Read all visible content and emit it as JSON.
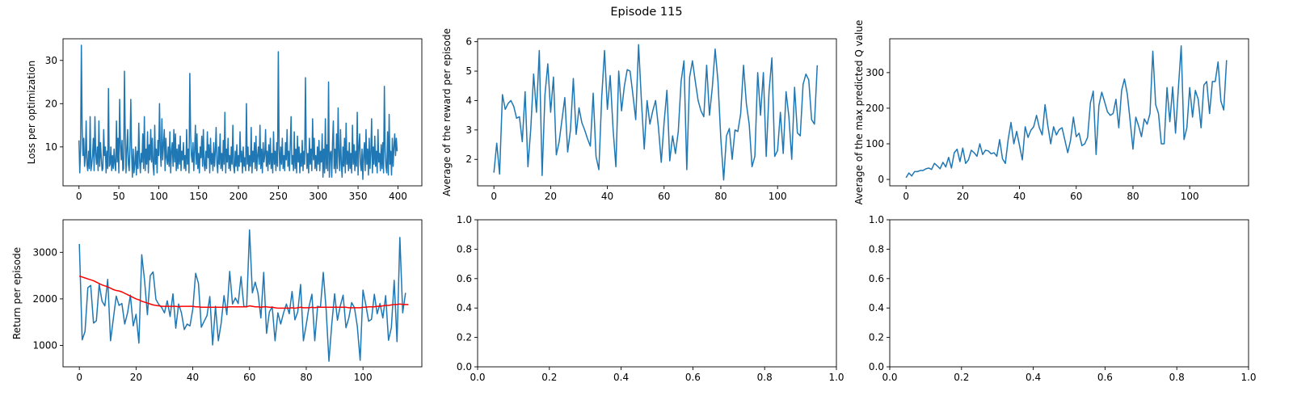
{
  "figure": {
    "suptitle": "Episode 115",
    "series_color": "#1f77b4",
    "trend_color": "#ff0000"
  },
  "chart_data": [
    {
      "id": "loss",
      "type": "line",
      "ylabel": "Loss per optimization",
      "xlim": [
        -20,
        430
      ],
      "ylim": [
        1.0,
        35.0
      ],
      "xticks": [
        0,
        50,
        100,
        150,
        200,
        250,
        300,
        350,
        400
      ],
      "yticks": [
        10,
        20,
        30
      ],
      "series": [
        {
          "values": [
            11.5,
            4.0,
            9.5,
            33.5,
            14.0,
            8.0,
            12.0,
            5.5,
            7.5,
            16.0,
            6.0,
            4.5,
            9.0,
            5.0,
            17.0,
            4.5,
            6.0,
            8.0,
            12.0,
            4.5,
            17.0,
            8.5,
            6.0,
            10.0,
            4.5,
            16.0,
            5.5,
            11.0,
            7.5,
            4.5,
            5.0,
            14.0,
            8.0,
            10.0,
            4.0,
            9.0,
            5.0,
            23.5,
            5.5,
            6.0,
            10.0,
            4.5,
            8.0,
            5.0,
            9.5,
            6.0,
            4.5,
            16.0,
            6.5,
            12.0,
            4.0,
            21.0,
            10.5,
            7.0,
            11.5,
            4.5,
            5.0,
            27.5,
            13.0,
            4.0,
            9.5,
            14.0,
            6.0,
            4.5,
            10.0,
            21.0,
            8.5,
            3.0,
            9.5,
            4.0,
            6.0,
            10.0,
            3.5,
            9.0,
            5.0,
            15.5,
            7.0,
            4.0,
            8.5,
            6.5,
            13.0,
            5.0,
            17.0,
            4.5,
            9.5,
            6.0,
            13.5,
            4.0,
            10.5,
            7.0,
            14.0,
            6.5,
            12.0,
            5.5,
            3.5,
            15.0,
            6.0,
            9.5,
            4.0,
            11.5,
            8.0,
            20.0,
            9.0,
            5.5,
            16.5,
            7.0,
            10.5,
            14.0,
            4.5,
            12.0,
            7.5,
            6.0,
            10.0,
            5.5,
            13.5,
            4.0,
            9.0,
            11.0,
            5.5,
            14.0,
            6.5,
            13.0,
            4.5,
            9.5,
            5.0,
            10.5,
            6.0,
            12.5,
            4.5,
            9.0,
            7.0,
            11.0,
            5.0,
            8.0,
            4.5,
            14.0,
            6.0,
            9.5,
            4.0,
            27.0,
            13.0,
            8.0,
            6.5,
            11.0,
            4.5,
            9.0,
            15.0,
            6.0,
            13.0,
            5.0,
            8.5,
            4.0,
            10.0,
            7.5,
            12.5,
            5.5,
            14.0,
            6.0,
            4.5,
            9.0,
            5.0,
            13.5,
            7.5,
            10.5,
            4.0,
            12.0,
            6.0,
            8.5,
            4.5,
            11.0,
            5.5,
            9.0,
            14.5,
            6.0,
            4.0,
            10.0,
            6.0,
            13.0,
            5.0,
            8.5,
            4.5,
            11.5,
            6.0,
            18.0,
            4.0,
            9.5,
            6.5,
            12.0,
            5.0,
            8.0,
            4.5,
            10.0,
            6.0,
            15.0,
            5.5,
            4.0,
            9.0,
            5.5,
            10.5,
            4.5,
            8.0,
            5.5,
            13.5,
            6.5,
            9.0,
            4.0,
            10.0,
            5.5,
            7.5,
            4.5,
            20.0,
            6.0,
            10.0,
            4.5,
            8.0,
            5.5,
            14.5,
            4.0,
            9.0,
            6.5,
            11.0,
            5.0,
            12.5,
            4.5,
            8.0,
            10.0,
            6.0,
            15.0,
            5.0,
            9.5,
            4.0,
            11.0,
            6.5,
            8.0,
            14.0,
            5.5,
            9.0,
            4.5,
            10.5,
            6.0,
            12.0,
            5.0,
            8.5,
            4.0,
            13.5,
            6.0,
            9.0,
            4.5,
            11.0,
            5.5,
            32.0,
            9.5,
            4.5,
            10.0,
            6.0,
            12.0,
            5.0,
            8.0,
            4.5,
            11.0,
            7.0,
            14.0,
            5.5,
            9.0,
            4.5,
            10.5,
            17.0,
            6.0,
            8.0,
            4.5,
            13.5,
            5.0,
            9.5,
            4.0,
            12.5,
            6.5,
            10.0,
            4.0,
            8.5,
            5.5,
            11.5,
            4.5,
            9.0,
            6.0,
            26.0,
            10.0,
            5.0,
            8.5,
            4.0,
            12.0,
            6.0,
            9.5,
            4.5,
            16.5,
            7.0,
            12.0,
            5.0,
            8.0,
            4.5,
            10.0,
            6.0,
            11.5,
            4.5,
            9.0,
            6.5,
            13.0,
            3.0,
            9.5,
            4.0,
            16.5,
            5.0,
            10.5,
            4.5,
            25.0,
            3.0,
            8.5,
            9.0,
            3.0,
            11.0,
            16.0,
            5.0,
            9.5,
            4.0,
            13.0,
            5.0,
            19.0,
            8.0,
            4.5,
            14.0,
            6.0,
            3.0,
            10.0,
            5.5,
            12.0,
            4.0,
            15.5,
            6.0,
            9.0,
            4.5,
            11.0,
            5.0,
            8.5,
            4.0,
            15.0,
            6.0,
            10.5,
            4.5,
            9.0,
            5.5,
            18.0,
            3.5,
            10.0,
            13.0,
            6.0,
            4.5,
            9.5,
            2.5,
            8.0,
            11.0,
            4.5,
            14.0,
            6.0,
            9.5,
            3.5,
            12.0,
            5.0,
            8.5,
            16.5,
            4.0,
            10.0,
            6.0,
            12.5,
            5.5,
            9.0,
            4.0,
            14.0,
            6.5,
            8.5,
            4.5,
            10.5,
            5.0,
            11.0,
            4.0,
            24.0,
            9.0,
            5.5,
            4.0,
            13.5,
            3.5,
            17.5,
            6.0,
            9.0,
            3.5,
            12.0,
            5.5,
            10.0,
            13.0,
            8.0,
            12.0,
            9.0
          ]
        }
      ]
    },
    {
      "id": "reward",
      "type": "line",
      "ylabel": "Average of the reward per episode",
      "xlim": [
        -5.75,
        120.75
      ],
      "ylim": [
        1.1,
        6.1
      ],
      "xticks": [
        0,
        20,
        40,
        60,
        80,
        100
      ],
      "yticks": [
        2,
        3,
        4,
        5,
        6
      ],
      "series": [
        {
          "values": [
            1.55,
            2.55,
            1.5,
            4.2,
            3.7,
            3.9,
            4.0,
            3.8,
            3.4,
            3.45,
            2.6,
            4.3,
            1.75,
            3.05,
            4.9,
            3.6,
            5.7,
            1.45,
            4.2,
            5.25,
            3.6,
            4.8,
            2.15,
            2.6,
            3.35,
            4.1,
            2.25,
            3.0,
            4.75,
            2.85,
            3.75,
            3.25,
            3.0,
            2.7,
            2.45,
            4.25,
            2.1,
            1.65,
            4.1,
            5.7,
            3.7,
            4.85,
            3.05,
            1.75,
            5.0,
            3.65,
            4.5,
            5.05,
            5.0,
            4.2,
            3.35,
            5.9,
            4.0,
            2.35,
            4.0,
            3.2,
            3.65,
            4.0,
            3.1,
            1.9,
            3.25,
            4.35,
            1.95,
            2.8,
            2.2,
            2.95,
            4.65,
            5.35,
            1.65,
            4.8,
            5.35,
            4.65,
            4.0,
            3.65,
            3.45,
            5.2,
            3.5,
            4.45,
            5.75,
            4.65,
            2.7,
            1.3,
            2.8,
            3.05,
            2.0,
            3.0,
            2.95,
            3.55,
            5.2,
            3.9,
            3.2,
            1.75,
            2.1,
            4.95,
            3.5,
            4.95,
            2.1,
            4.3,
            5.45,
            2.1,
            2.3,
            3.6,
            2.2,
            4.3,
            3.45,
            2.0,
            4.45,
            2.9,
            2.8,
            4.55,
            4.9,
            4.7,
            3.35,
            3.2,
            5.2
          ]
        }
      ]
    },
    {
      "id": "qvalue",
      "type": "line",
      "ylabel": "Average of the max predicted Q value",
      "xlim": [
        -5.75,
        120.75
      ],
      "ylim": [
        -18,
        395
      ],
      "xticks": [
        0,
        20,
        40,
        60,
        80,
        100
      ],
      "yticks": [
        0,
        100,
        200,
        300
      ],
      "series": [
        {
          "values": [
            5,
            18,
            10,
            22,
            22,
            25,
            25,
            30,
            32,
            28,
            45,
            38,
            30,
            48,
            35,
            62,
            32,
            75,
            85,
            50,
            88,
            45,
            55,
            82,
            75,
            65,
            100,
            70,
            82,
            80,
            72,
            75,
            65,
            112,
            58,
            45,
            112,
            160,
            100,
            135,
            95,
            55,
            148,
            118,
            138,
            148,
            180,
            145,
            125,
            210,
            150,
            100,
            148,
            125,
            140,
            145,
            110,
            75,
            110,
            175,
            120,
            130,
            95,
            100,
            118,
            215,
            248,
            70,
            208,
            245,
            218,
            190,
            180,
            185,
            225,
            145,
            250,
            282,
            240,
            165,
            85,
            175,
            150,
            120,
            170,
            155,
            185,
            360,
            210,
            185,
            100,
            100,
            258,
            162,
            260,
            130,
            255,
            375,
            112,
            145,
            258,
            175,
            250,
            225,
            145,
            265,
            275,
            185,
            275,
            275,
            330,
            220,
            195,
            335
          ]
        }
      ]
    },
    {
      "id": "return",
      "type": "line",
      "ylabel": "Return per episode",
      "xlim": [
        -5.75,
        120.75
      ],
      "ylim": [
        540,
        3700
      ],
      "xticks": [
        0,
        20,
        40,
        60,
        80,
        100
      ],
      "yticks": [
        1000,
        2000,
        3000
      ],
      "series": [
        {
          "values": [
            3180,
            1120,
            1300,
            2240,
            2290,
            1480,
            1530,
            2310,
            1950,
            1850,
            2420,
            1100,
            1580,
            2060,
            1860,
            1900,
            1460,
            1700,
            2080,
            1420,
            1670,
            1050,
            2950,
            2390,
            1660,
            2500,
            2580,
            1990,
            1880,
            1820,
            1700,
            1960,
            1620,
            2110,
            1370,
            1890,
            1700,
            1340,
            1460,
            1420,
            1780,
            2550,
            2330,
            1390,
            1520,
            1640,
            2050,
            1010,
            1840,
            1100,
            1480,
            2070,
            1660,
            2590,
            1890,
            2020,
            1900,
            2480,
            1840,
            1830,
            3480,
            2130,
            2360,
            2120,
            1590,
            2570,
            1260,
            1720,
            1830,
            1100,
            1700,
            1460,
            1700,
            1890,
            1680,
            2160,
            1550,
            1720,
            2310,
            1100,
            1450,
            1840,
            2100,
            1100,
            1840,
            1820,
            2570,
            1780,
            660,
            1460,
            2110,
            1540,
            1850,
            2080,
            1380,
            1590,
            1920,
            1810,
            1410,
            680,
            2190,
            1870,
            1520,
            1560,
            2100,
            1680,
            1900,
            1590,
            2070,
            1110,
            1380,
            2400,
            1080,
            3320,
            1700,
            2130
          ]
        },
        {
          "values": [
            2490,
            2470,
            2450,
            2430,
            2410,
            2390,
            2360,
            2330,
            2300,
            2280,
            2260,
            2230,
            2200,
            2180,
            2170,
            2150,
            2120,
            2090,
            2060,
            2030,
            2000,
            1980,
            1950,
            1930,
            1910,
            1890,
            1870,
            1860,
            1850,
            1840,
            1840,
            1840,
            1840,
            1840,
            1840,
            1830,
            1840,
            1840,
            1840,
            1840,
            1840,
            1830,
            1830,
            1820,
            1820,
            1820,
            1820,
            1820,
            1820,
            1820,
            1820,
            1820,
            1820,
            1830,
            1830,
            1830,
            1830,
            1830,
            1830,
            1830,
            1850,
            1840,
            1830,
            1830,
            1820,
            1830,
            1830,
            1820,
            1820,
            1810,
            1800,
            1800,
            1800,
            1800,
            1800,
            1810,
            1800,
            1810,
            1820,
            1810,
            1810,
            1810,
            1820,
            1810,
            1820,
            1820,
            1820,
            1820,
            1820,
            1820,
            1820,
            1820,
            1820,
            1820,
            1820,
            1810,
            1810,
            1810,
            1810,
            1810,
            1820,
            1820,
            1830,
            1830,
            1830,
            1840,
            1840,
            1850,
            1860,
            1860,
            1870,
            1880,
            1880,
            1890,
            1880,
            1880,
            1880
          ]
        }
      ]
    },
    {
      "id": "empty_1",
      "type": "line",
      "xlim": [
        0,
        1
      ],
      "ylim": [
        0,
        1
      ],
      "xticks": [
        0.0,
        0.2,
        0.4,
        0.6,
        0.8,
        1.0
      ],
      "yticks": [
        0.0,
        0.2,
        0.4,
        0.6,
        0.8,
        1.0
      ],
      "series": []
    },
    {
      "id": "empty_2",
      "type": "line",
      "xlim": [
        0,
        1
      ],
      "ylim": [
        0,
        1
      ],
      "xticks": [
        0.0,
        0.2,
        0.4,
        0.6,
        0.8,
        1.0
      ],
      "yticks": [
        0.0,
        0.2,
        0.4,
        0.6,
        0.8,
        1.0
      ],
      "series": []
    }
  ]
}
